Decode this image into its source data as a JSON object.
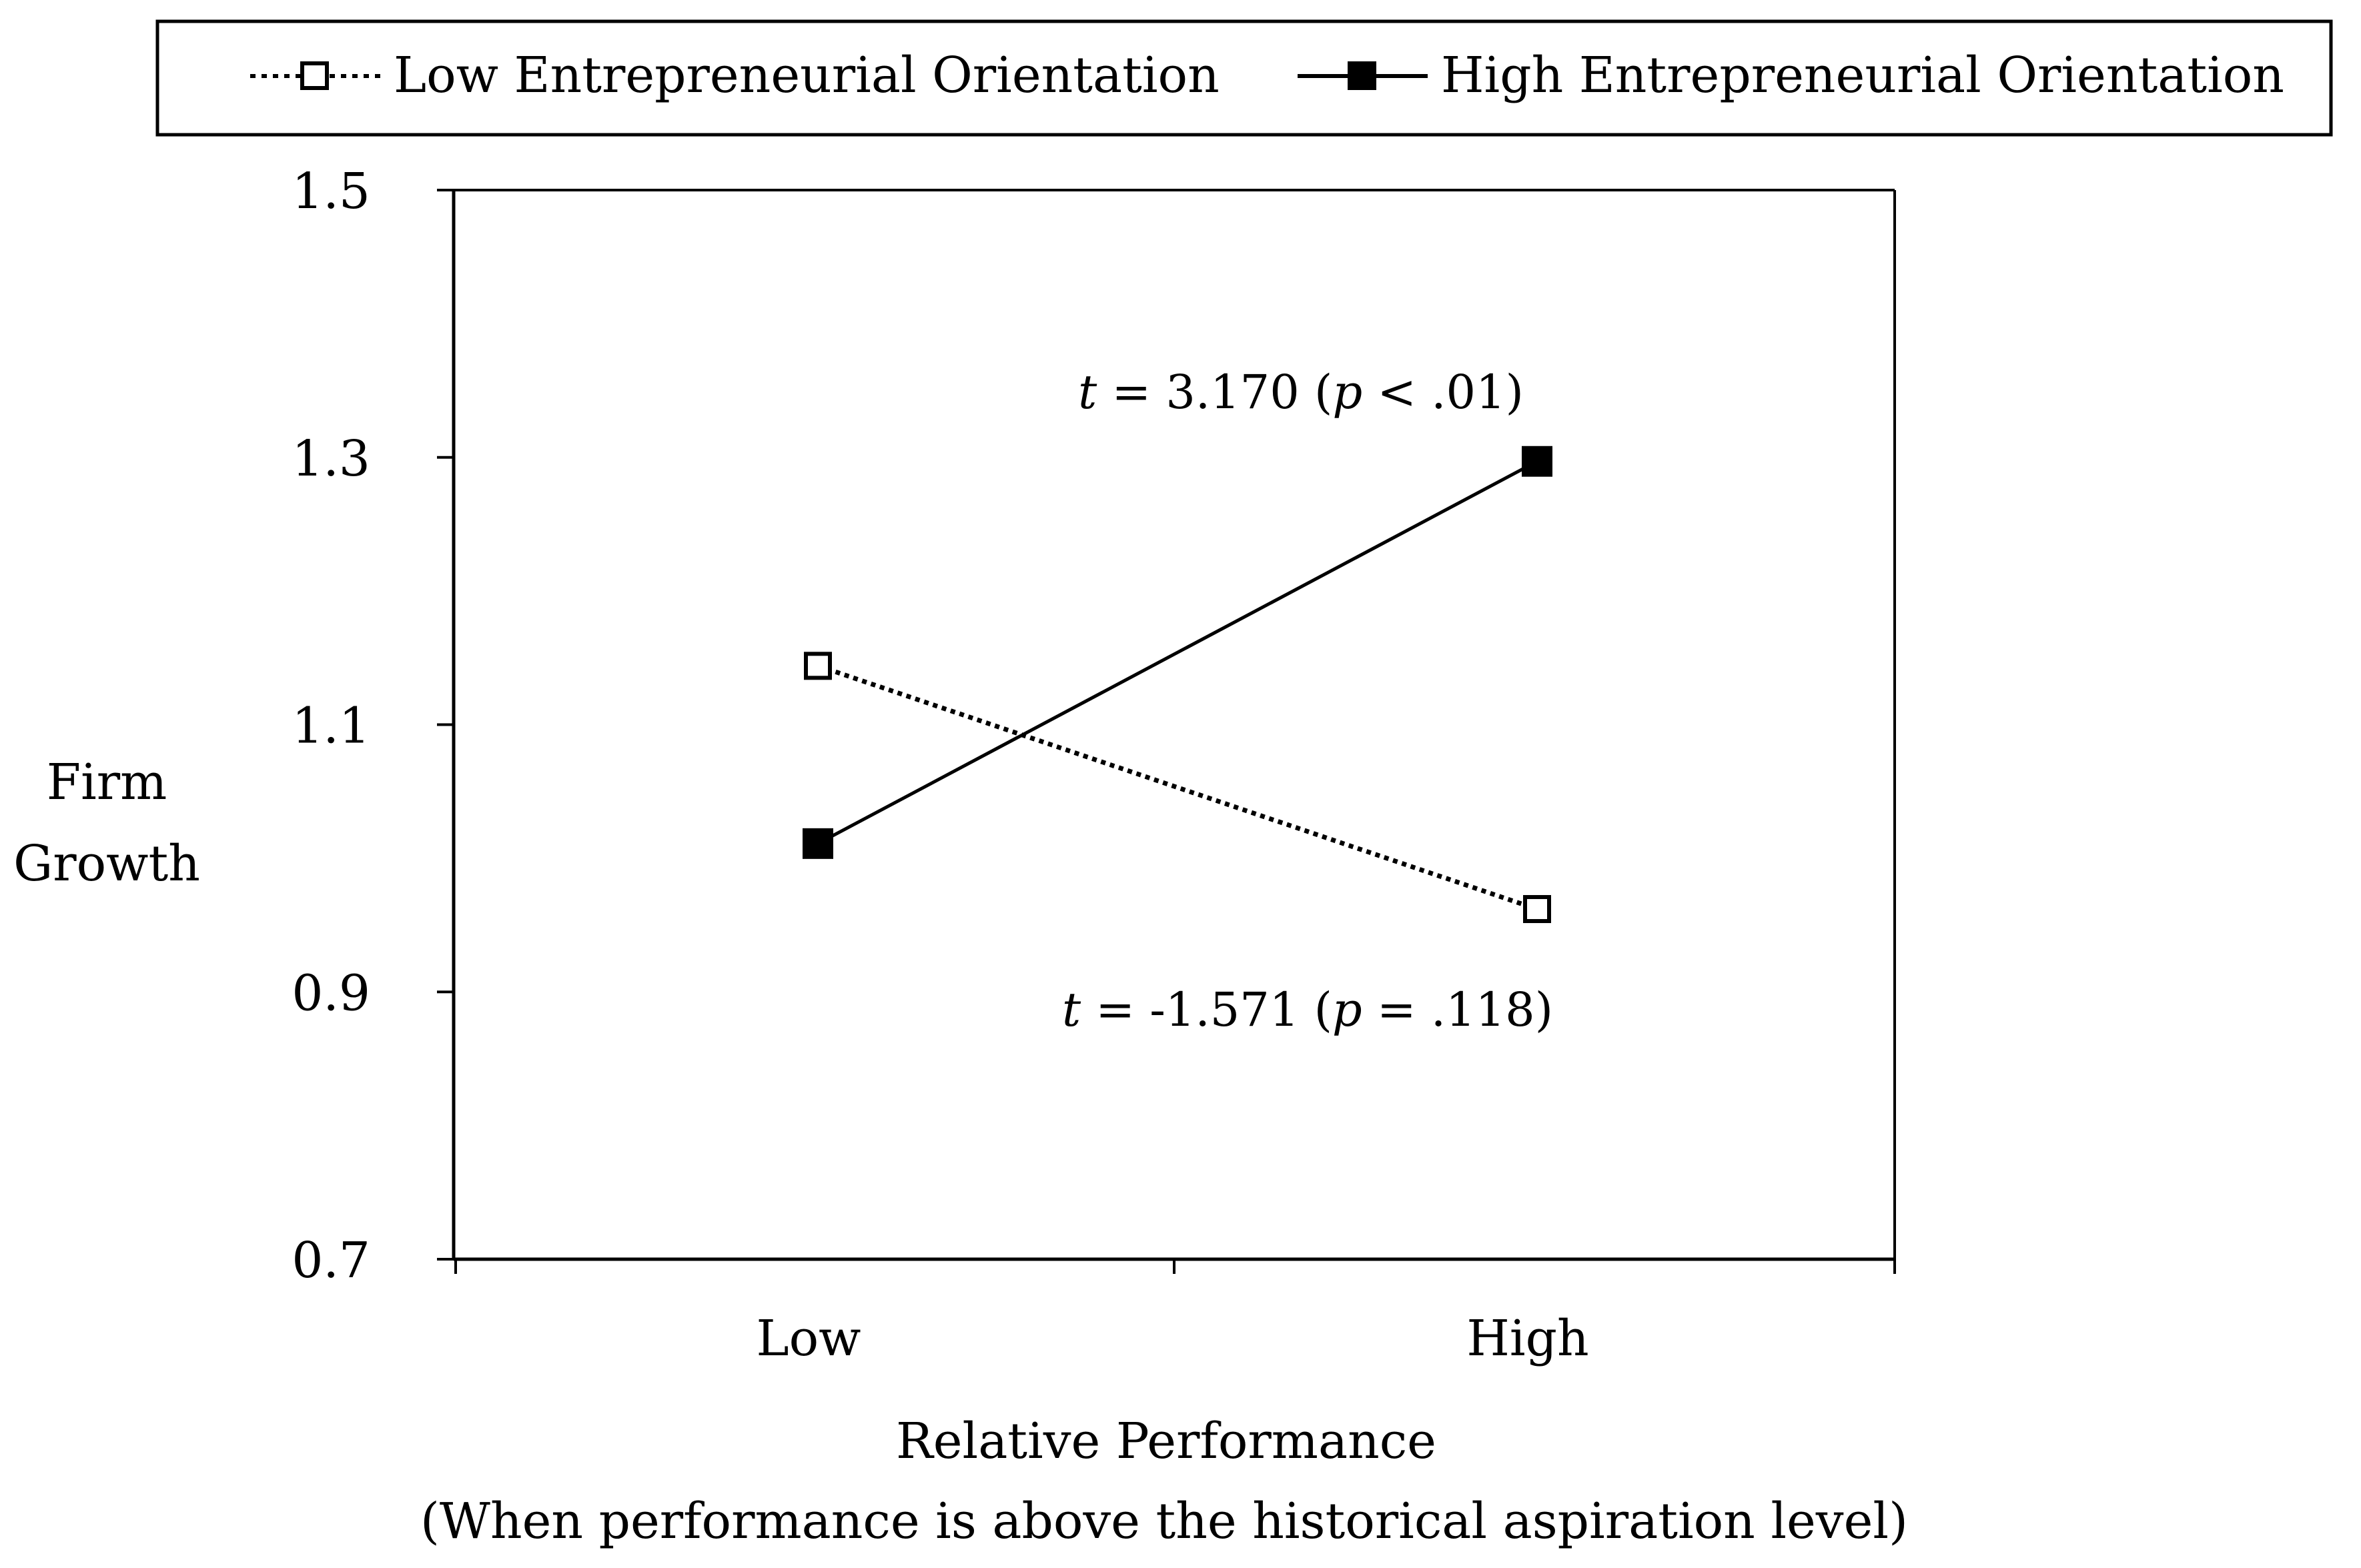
{
  "chart_data": {
    "type": "line",
    "title": "",
    "categories": [
      "Low",
      "High"
    ],
    "series": [
      {
        "name": "Low Entrepreneurial Orientation",
        "values": [
          1.144,
          0.962
        ],
        "line_style": "dotted",
        "marker": "open-square",
        "color": "#000000"
      },
      {
        "name": "High Entrepreneurial Orientation",
        "values": [
          1.011,
          1.297
        ],
        "line_style": "solid",
        "marker": "filled-square",
        "color": "#000000"
      }
    ],
    "ylabel_lines": [
      "Firm",
      "Growth"
    ],
    "xlabel": "Relative Performance",
    "xlabel_sub": "(When performance is above the historical aspiration level)",
    "ylim": [
      0.7,
      1.5
    ],
    "yticks": [
      1.5,
      1.3,
      1.1,
      0.9,
      0.7
    ],
    "ytick_labels": [
      "1.5",
      "1.3",
      "1.1",
      "0.9",
      "0.7"
    ],
    "legend_position": "top",
    "grid": false,
    "annotations": [
      {
        "series": "High Entrepreneurial Orientation",
        "t_label": "t",
        "t_rest": " = 3.170 (",
        "p_label": "p",
        "p_rest": " < .01)"
      },
      {
        "series": "Low Entrepreneurial Orientation",
        "t_label": "t",
        "t_rest": " = -1.571 (",
        "p_label": "p",
        "p_rest": " = .118)"
      }
    ]
  }
}
